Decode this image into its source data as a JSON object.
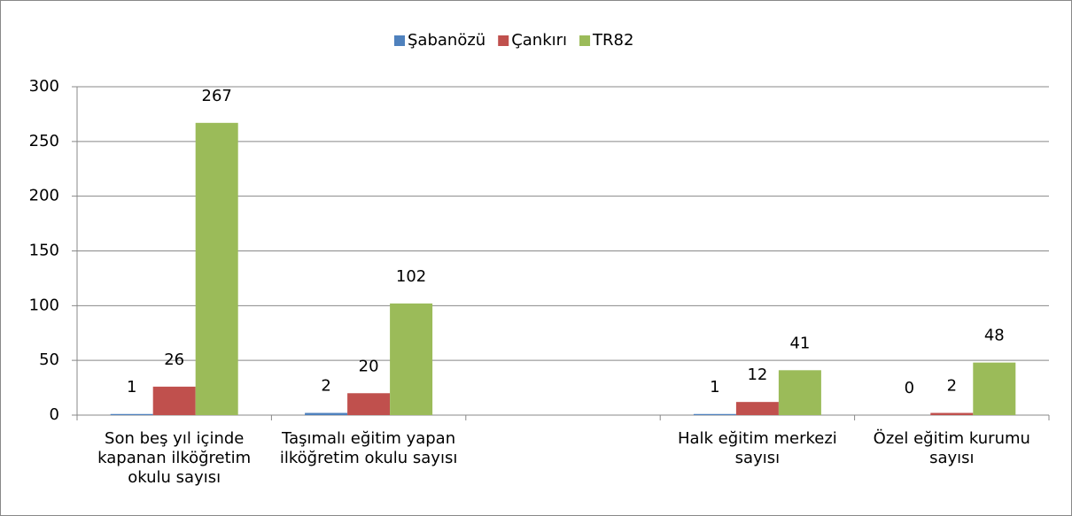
{
  "chart_data": {
    "type": "bar",
    "categories": [
      "Son beş yıl içinde kapanan ilköğretim okulu sayısı",
      "Taşımalı eğitim yapan ilköğretim okulu sayısı",
      null,
      "Halk eğitim merkezi sayısı",
      "Özel eğitim kurumu sayısı"
    ],
    "series": [
      {
        "name": "Şabanözü",
        "color": "#4f81bd",
        "values": [
          1,
          2,
          null,
          1,
          0
        ]
      },
      {
        "name": "Çankırı",
        "color": "#c0504d",
        "values": [
          26,
          20,
          null,
          12,
          2
        ]
      },
      {
        "name": "TR82",
        "color": "#9bbb59",
        "values": [
          267,
          102,
          null,
          41,
          48
        ]
      }
    ],
    "ylim": [
      0,
      300
    ],
    "yticks": [
      0,
      50,
      100,
      150,
      200,
      250,
      300
    ],
    "grid": true,
    "legend": "top"
  }
}
